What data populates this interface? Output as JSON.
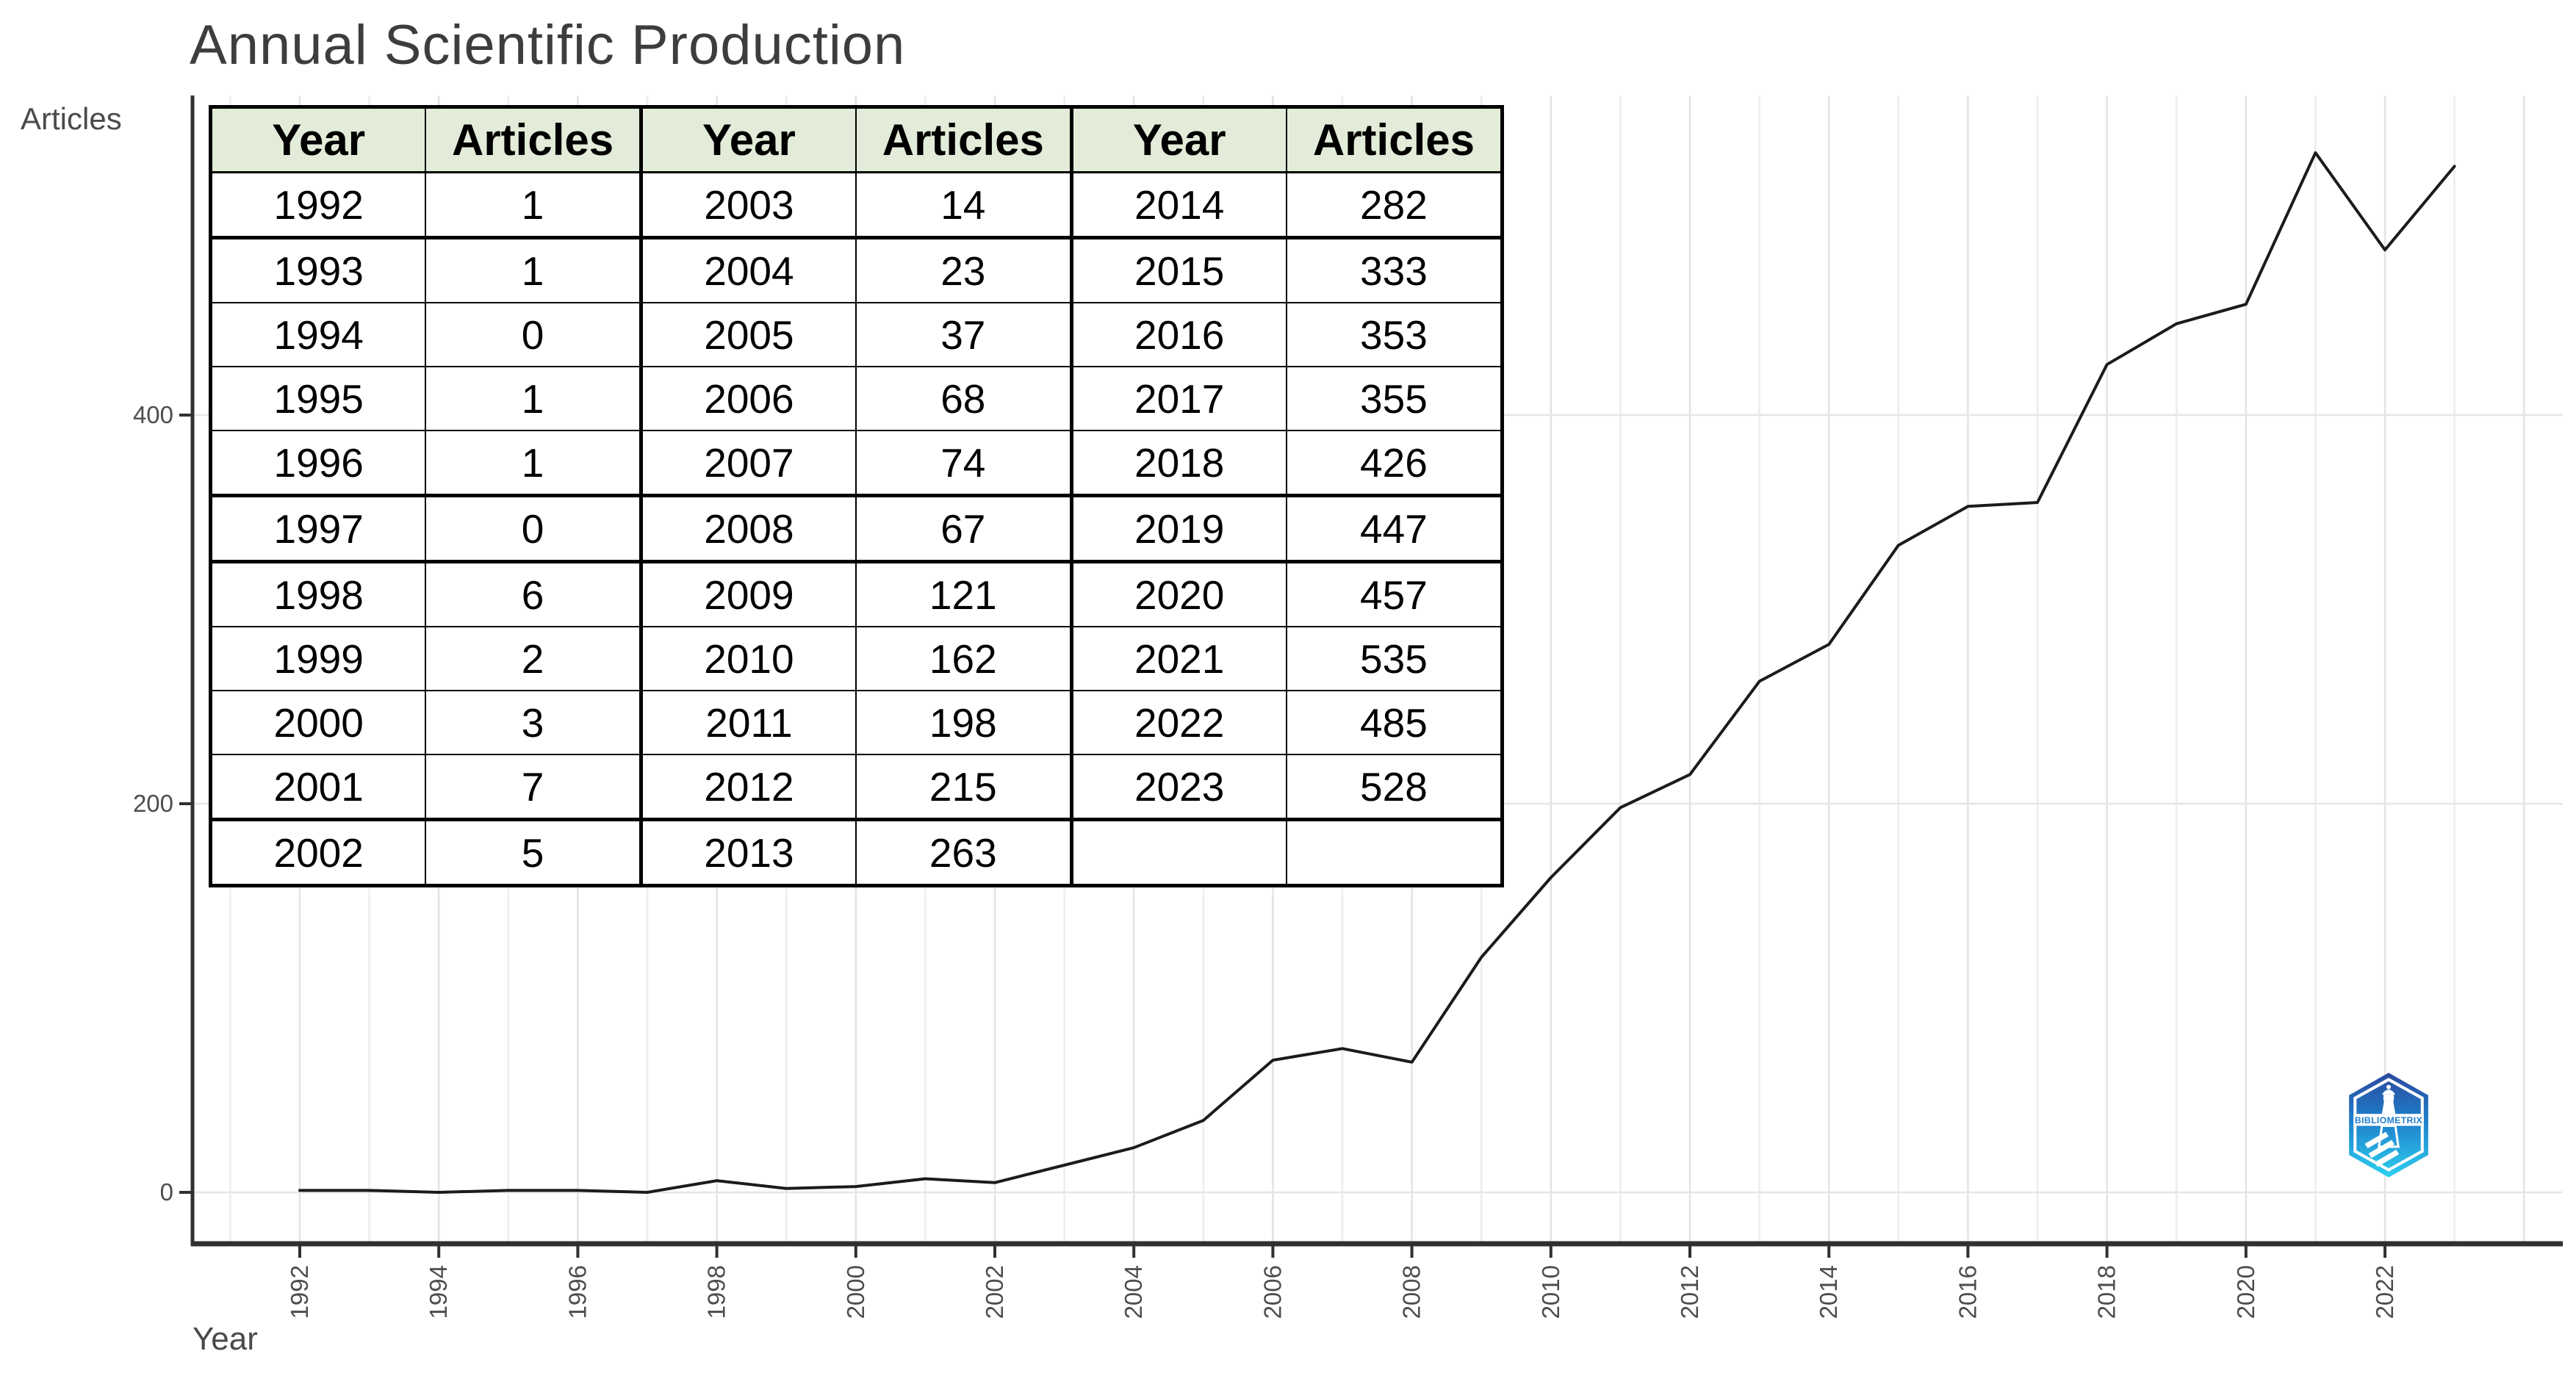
{
  "title": "Annual Scientific Production",
  "y_axis_label": "Articles",
  "x_axis_label": "Year",
  "table": {
    "header": [
      "Year",
      "Articles",
      "Year",
      "Articles",
      "Year",
      "Articles"
    ],
    "header_bg": "#e2ecd9",
    "rows": [
      [
        "1992",
        "1",
        "2003",
        "14",
        "2014",
        "282"
      ],
      [
        "1993",
        "1",
        "2004",
        "23",
        "2015",
        "333"
      ],
      [
        "1994",
        "0",
        "2005",
        "37",
        "2016",
        "353"
      ],
      [
        "1995",
        "1",
        "2006",
        "68",
        "2017",
        "355"
      ],
      [
        "1996",
        "1",
        "2007",
        "74",
        "2018",
        "426"
      ],
      [
        "1997",
        "0",
        "2008",
        "67",
        "2019",
        "447"
      ],
      [
        "1998",
        "6",
        "2009",
        "121",
        "2020",
        "457"
      ],
      [
        "1999",
        "2",
        "2010",
        "162",
        "2021",
        "535"
      ],
      [
        "2000",
        "3",
        "2011",
        "198",
        "2022",
        "485"
      ],
      [
        "2001",
        "7",
        "2012",
        "215",
        "2023",
        "528"
      ],
      [
        "2002",
        "5",
        "2013",
        "263",
        "",
        ""
      ]
    ]
  },
  "chart_data": {
    "type": "line",
    "title": "Annual Scientific Production",
    "xlabel": "Year",
    "ylabel": "Articles",
    "x": [
      1992,
      1993,
      1994,
      1995,
      1996,
      1997,
      1998,
      1999,
      2000,
      2001,
      2002,
      2003,
      2004,
      2005,
      2006,
      2007,
      2008,
      2009,
      2010,
      2011,
      2012,
      2013,
      2014,
      2015,
      2016,
      2017,
      2018,
      2019,
      2020,
      2021,
      2022,
      2023
    ],
    "values": [
      1,
      1,
      0,
      1,
      1,
      0,
      6,
      2,
      3,
      7,
      5,
      14,
      23,
      37,
      68,
      74,
      67,
      121,
      162,
      198,
      215,
      263,
      282,
      333,
      353,
      355,
      426,
      447,
      457,
      535,
      485,
      528
    ],
    "x_tick_labels": [
      "1992",
      "1994",
      "1996",
      "1998",
      "2000",
      "2002",
      "2004",
      "2006",
      "2008",
      "2010",
      "2012",
      "2014",
      "2016",
      "2018",
      "2020",
      "2022"
    ],
    "y_ticks": [
      0,
      200,
      400
    ],
    "ylim": [
      0,
      562
    ],
    "grid": "on",
    "legend": "none",
    "line_color": "#1b1b1b"
  },
  "logo": {
    "text": "BIBLIOMETRIX",
    "color_top": "#2c4a9e",
    "color_mid": "#1e7ec9",
    "color_bottom": "#2ed0f0",
    "text_color": "#1f7fd0"
  }
}
